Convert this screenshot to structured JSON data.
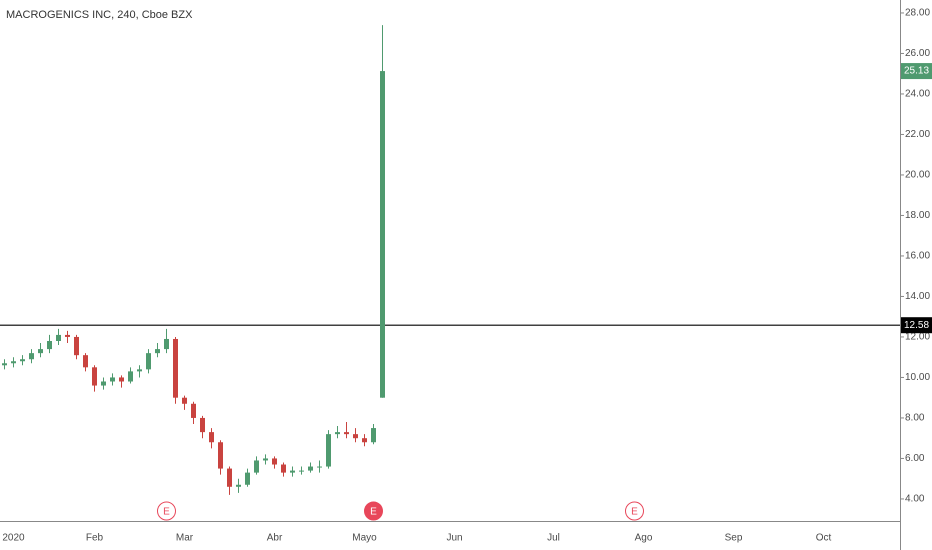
{
  "chart_data": {
    "type": "candlestick",
    "title": "MACROGENICS INC, 240, Cboe BZX",
    "categories": [
      null,
      "2020",
      null,
      null,
      null,
      null,
      null,
      null,
      null,
      null,
      "Feb",
      null,
      null,
      null,
      null,
      null,
      null,
      null,
      null,
      null,
      "Mar",
      null,
      null,
      null,
      null,
      null,
      null,
      null,
      null,
      null,
      "Abr",
      null,
      null,
      null,
      null,
      null,
      null,
      null,
      null,
      null,
      "Mayo",
      null,
      null,
      null,
      null,
      null,
      null,
      null,
      null,
      null,
      "Jun",
      null,
      null,
      null,
      null,
      null,
      null,
      null,
      null,
      null,
      null,
      "Jul",
      null,
      null,
      null,
      null,
      null,
      null,
      null,
      null,
      null,
      "Ago",
      null,
      null,
      null,
      null,
      null,
      null,
      null,
      null,
      null,
      "Sep",
      null,
      null,
      null,
      null,
      null,
      null,
      null,
      null,
      null,
      "Oct"
    ],
    "open": [
      10.6,
      10.7,
      10.8,
      10.9,
      11.2,
      11.4,
      11.8,
      12.1,
      12.0,
      11.1,
      10.5,
      9.6,
      9.8,
      10.0,
      9.8,
      10.3,
      10.4,
      11.2,
      11.4,
      11.9,
      9.0,
      8.7,
      8.0,
      7.3,
      6.8,
      5.5,
      4.6,
      4.7,
      5.3,
      5.9,
      6.0,
      5.7,
      5.3,
      5.4,
      5.4,
      5.6,
      5.6,
      7.2,
      7.3,
      7.2,
      7.0,
      6.8,
      9.0,
      null,
      null,
      null,
      null,
      null,
      null,
      null,
      null,
      null,
      null,
      null,
      null,
      null,
      null,
      null,
      null,
      null,
      null,
      null,
      null,
      null,
      null,
      null,
      null,
      null,
      null,
      null,
      null,
      null,
      null,
      null,
      null,
      null,
      null,
      null,
      null,
      null,
      null,
      null,
      null,
      null,
      null,
      null,
      null,
      null,
      null,
      null,
      null,
      null
    ],
    "high": [
      10.9,
      11.0,
      11.1,
      11.4,
      11.7,
      12.1,
      12.4,
      12.3,
      12.1,
      11.2,
      10.6,
      10.0,
      10.2,
      10.1,
      10.5,
      10.6,
      11.4,
      11.7,
      12.4,
      12.0,
      9.1,
      8.8,
      8.1,
      7.5,
      6.9,
      5.6,
      5.0,
      5.5,
      6.1,
      6.2,
      6.1,
      5.8,
      5.6,
      5.6,
      5.8,
      5.9,
      7.4,
      7.6,
      7.8,
      7.5,
      7.2,
      7.7,
      27.4,
      null,
      null,
      null,
      null,
      null,
      null,
      null,
      null,
      null,
      null,
      null,
      null,
      null,
      null,
      null,
      null,
      null,
      null,
      null,
      null,
      null,
      null,
      null,
      null,
      null,
      null,
      null,
      null,
      null,
      null,
      null,
      null,
      null,
      null,
      null,
      null,
      null,
      null,
      null,
      null,
      null,
      null,
      null,
      null,
      null,
      null,
      null,
      null,
      null
    ],
    "low": [
      10.4,
      10.5,
      10.6,
      10.7,
      11.0,
      11.2,
      11.6,
      11.7,
      10.9,
      10.3,
      9.3,
      9.4,
      9.6,
      9.5,
      9.7,
      10.0,
      10.2,
      11.0,
      11.2,
      8.7,
      8.4,
      7.7,
      7.0,
      6.5,
      5.2,
      4.2,
      4.3,
      4.6,
      5.2,
      5.7,
      5.5,
      5.1,
      5.1,
      5.2,
      5.3,
      5.3,
      5.5,
      7.0,
      7.0,
      6.8,
      6.6,
      6.7,
      9.0,
      null,
      null,
      null,
      null,
      null,
      null,
      null,
      null,
      null,
      null,
      null,
      null,
      null,
      null,
      null,
      null,
      null,
      null,
      null,
      null,
      null,
      null,
      null,
      null,
      null,
      null,
      null,
      null,
      null,
      null,
      null,
      null,
      null,
      null,
      null,
      null,
      null,
      null,
      null,
      null,
      null,
      null,
      null,
      null,
      null,
      null,
      null,
      null,
      null
    ],
    "close": [
      10.7,
      10.8,
      10.9,
      11.2,
      11.4,
      11.8,
      12.1,
      12.0,
      11.1,
      10.5,
      9.6,
      9.8,
      10.0,
      9.8,
      10.3,
      10.4,
      11.2,
      11.4,
      11.9,
      9.0,
      8.7,
      8.0,
      7.3,
      6.8,
      5.5,
      4.6,
      4.7,
      5.3,
      5.9,
      6.0,
      5.7,
      5.3,
      5.4,
      5.4,
      5.6,
      5.6,
      7.2,
      7.3,
      7.2,
      7.0,
      6.8,
      7.5,
      25.13,
      null,
      null,
      null,
      null,
      null,
      null,
      null,
      null,
      null,
      null,
      null,
      null,
      null,
      null,
      null,
      null,
      null,
      null,
      null,
      null,
      null,
      null,
      null,
      null,
      null,
      null,
      null,
      null,
      null,
      null,
      null,
      null,
      null,
      null,
      null,
      null,
      null,
      null,
      null,
      null,
      null,
      null,
      null,
      null,
      null,
      null,
      null,
      null,
      null
    ],
    "up_color": "#4f9a6f",
    "down_color": "#c9433f",
    "ylim": [
      2.96,
      28.64
    ],
    "yticks": [
      {
        "value": 4,
        "label": "4.00"
      },
      {
        "value": 6,
        "label": "6.00"
      },
      {
        "value": 8,
        "label": "8.00"
      },
      {
        "value": 10,
        "label": "10.00"
      },
      {
        "value": 12,
        "label": "12.00"
      },
      {
        "value": 14,
        "label": "14.00"
      },
      {
        "value": 16,
        "label": "16.00"
      },
      {
        "value": 18,
        "label": "18.00"
      },
      {
        "value": 20,
        "label": "20.00"
      },
      {
        "value": 22,
        "label": "22.00"
      },
      {
        "value": 24,
        "label": "24.00"
      },
      {
        "value": 26,
        "label": "26.00"
      },
      {
        "value": 28,
        "label": "28.00"
      }
    ],
    "last_price": 25.13,
    "horizontal_line": 12.58,
    "earnings": [
      {
        "label": "E",
        "x": 18,
        "filled": false
      },
      {
        "label": "E",
        "x": 41,
        "filled": true
      },
      {
        "label": "E",
        "x": 70,
        "filled": false
      }
    ]
  }
}
